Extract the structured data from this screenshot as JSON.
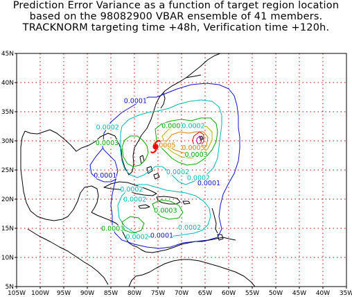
{
  "title": {
    "line1": "Prediction Error Variance as a function of target region location",
    "line2": "based on the 98082900 VBAR ensemble of 41 members.",
    "line3": "TRACKNORM targeting time +48h, Verification time +120h."
  },
  "axes": {
    "lon_ticks": [
      "105W",
      "100W",
      "95W",
      "90W",
      "85W",
      "80W",
      "75W",
      "70W",
      "65W",
      "60W",
      "55W",
      "50W",
      "45W",
      "40W",
      "35W"
    ],
    "lat_ticks": [
      "5N",
      "10N",
      "15N",
      "20N",
      "25N",
      "30N",
      "35N",
      "40N",
      "45N"
    ]
  },
  "colors": {
    "c0001": "#1010d0",
    "c0002": "#00b8b8",
    "c0003": "#00aa00",
    "c0004": "#b0b000",
    "c0005": "#e08000",
    "c0006": "#cc0000",
    "c0007": "#a000a0",
    "storm": "#ff0000",
    "grid": "#cc0000",
    "coast": "#000000"
  },
  "contour_labels": [
    {
      "text": "0.0001",
      "color": "c0001",
      "lon": -79.8,
      "lat": 36.6
    },
    {
      "text": "0.0002",
      "color": "c0002",
      "lon": -85.7,
      "lat": 32.1
    },
    {
      "text": "0.0003",
      "color": "c0003",
      "lon": -85.8,
      "lat": 29.4
    },
    {
      "text": "0.0003",
      "color": "c0003",
      "lon": -71.8,
      "lat": 32.3
    },
    {
      "text": "0.0002",
      "color": "c0002",
      "lon": -67.5,
      "lat": 32.3
    },
    {
      "text": "0.0005",
      "color": "c0005",
      "lon": -73.7,
      "lat": 29.0
    },
    {
      "text": "0.0005",
      "color": "c0005",
      "lon": -67.5,
      "lat": 28.6
    },
    {
      "text": "0.0003",
      "color": "c0003",
      "lon": -66.9,
      "lat": 27.4
    },
    {
      "text": "0.0002",
      "color": "c0002",
      "lon": -70.8,
      "lat": 24.4
    },
    {
      "text": "0.0002",
      "color": "c0002",
      "lon": -66.4,
      "lat": 23.4
    },
    {
      "text": "0.0001",
      "color": "c0001",
      "lon": -64.2,
      "lat": 22.5
    },
    {
      "text": "0.0001",
      "color": "c0001",
      "lon": -86.2,
      "lat": 23.8
    },
    {
      "text": "0.0002",
      "color": "c0002",
      "lon": -80.6,
      "lat": 21.4
    },
    {
      "text": "0.0002",
      "color": "c0002",
      "lon": -79.9,
      "lat": 19.7
    },
    {
      "text": "0.0003",
      "color": "c0003",
      "lon": -73.4,
      "lat": 17.8
    },
    {
      "text": "0.0003",
      "color": "c0003",
      "lon": -84.6,
      "lat": 14.7
    },
    {
      "text": "0.0002",
      "color": "c0002",
      "lon": -68.3,
      "lat": 14.9
    },
    {
      "text": "0.0002",
      "color": "c0002",
      "lon": -79.4,
      "lat": 13.3
    },
    {
      "text": "0.0001",
      "color": "c0001",
      "lon": -74.2,
      "lat": 13.5
    }
  ],
  "storm_symbol": {
    "name": "hurricane",
    "lon": -75.5,
    "lat": 29.0
  }
}
